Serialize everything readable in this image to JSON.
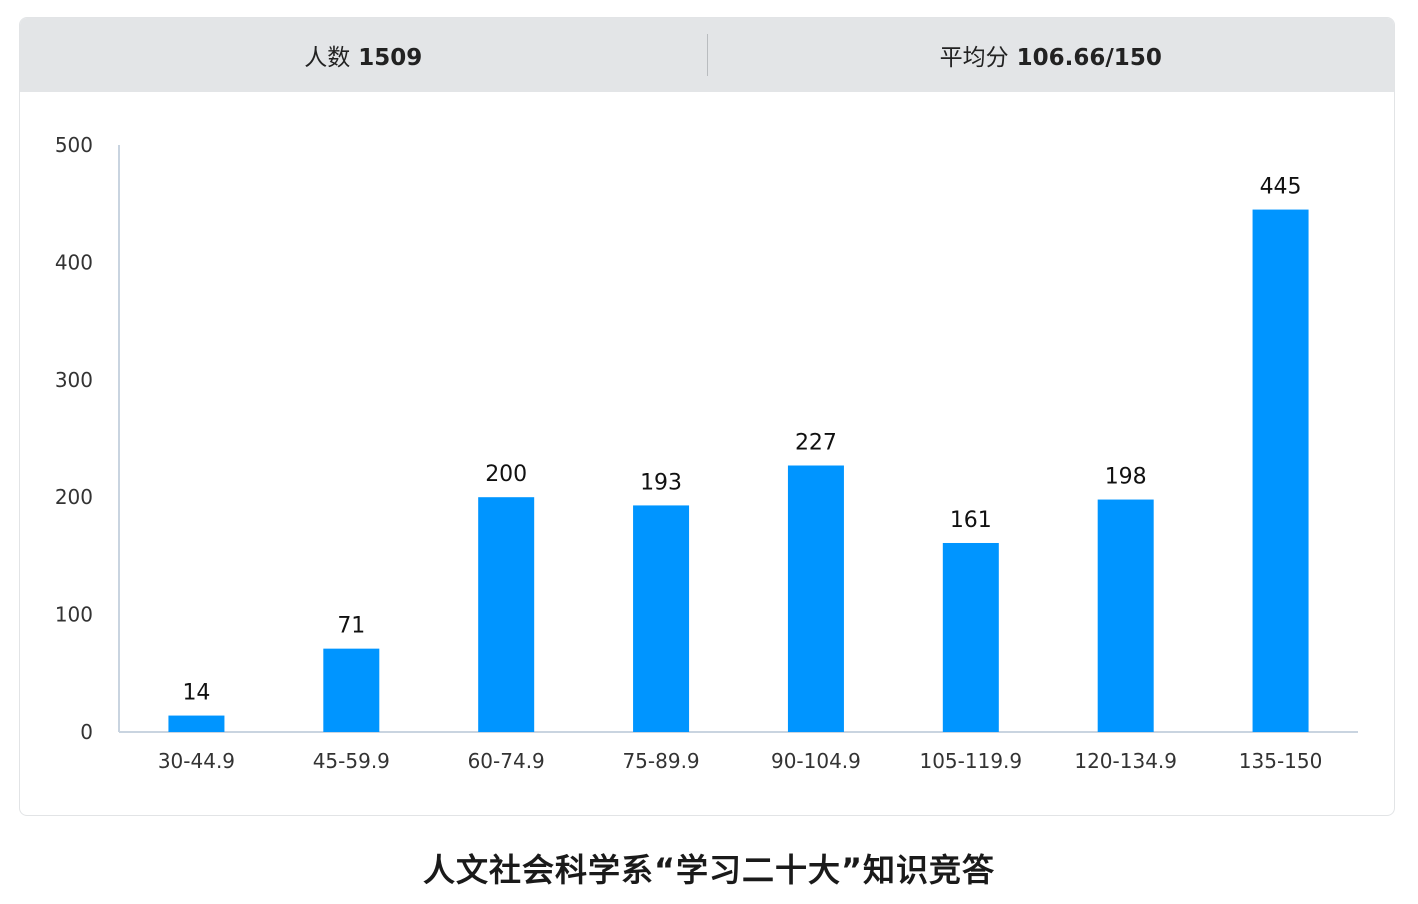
{
  "stats": {
    "count_label": "人数",
    "count_value": "1509",
    "avg_label": "平均分",
    "avg_value": "106.66/150"
  },
  "footer": {
    "title": "人文社会科学系“学习二十大”知识竞答"
  },
  "colors": {
    "bar": "#0095ff",
    "axis": "#c9d4e0",
    "text": "#333333",
    "header_bg": "#e3e5e7"
  },
  "chart_data": {
    "type": "bar",
    "title": "",
    "xlabel": "",
    "ylabel": "",
    "categories": [
      "30-44.9",
      "45-59.9",
      "60-74.9",
      "75-89.9",
      "90-104.9",
      "105-119.9",
      "120-134.9",
      "135-150"
    ],
    "values": [
      14,
      71,
      200,
      193,
      227,
      161,
      198,
      445
    ],
    "ylim": [
      0,
      500
    ],
    "yticks": [
      0,
      100,
      200,
      300,
      400,
      500
    ],
    "grid": false,
    "legend": "none",
    "data_labels": true
  }
}
